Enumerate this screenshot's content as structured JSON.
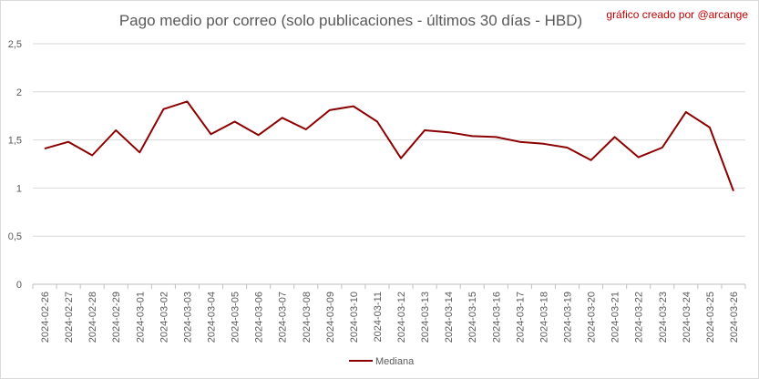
{
  "credit": "gráfico creado por @arcange",
  "chart_data": {
    "type": "line",
    "title": "Pago medio por correo (solo publicaciones - últimos 30 días - HBD)",
    "xlabel": "",
    "ylabel": "",
    "ylim": [
      0,
      2.5
    ],
    "yticks": [
      "0",
      "0,5",
      "1",
      "1,5",
      "2",
      "2,5"
    ],
    "grid": true,
    "legend": "bottom",
    "line_color": "#8b0000",
    "categories": [
      "2024-02-26",
      "2024-02-27",
      "2024-02-28",
      "2024-02-29",
      "2024-03-01",
      "2024-03-02",
      "2024-03-03",
      "2024-03-04",
      "2024-03-05",
      "2024-03-06",
      "2024-03-07",
      "2024-03-08",
      "2024-03-09",
      "2024-03-10",
      "2024-03-11",
      "2024-03-12",
      "2024-03-13",
      "2024-03-14",
      "2024-03-15",
      "2024-03-16",
      "2024-03-17",
      "2024-03-18",
      "2024-03-19",
      "2024-03-20",
      "2024-03-21",
      "2024-03-22",
      "2024-03-23",
      "2024-03-24",
      "2024-03-25",
      "2024-03-26"
    ],
    "series": [
      {
        "name": "Mediana",
        "values": [
          1.41,
          1.48,
          1.34,
          1.6,
          1.37,
          1.82,
          1.9,
          1.56,
          1.69,
          1.55,
          1.73,
          1.61,
          1.81,
          1.85,
          1.69,
          1.31,
          1.6,
          1.58,
          1.54,
          1.53,
          1.48,
          1.46,
          1.42,
          1.29,
          1.53,
          1.32,
          1.42,
          1.79,
          1.63,
          0.97
        ]
      }
    ]
  }
}
